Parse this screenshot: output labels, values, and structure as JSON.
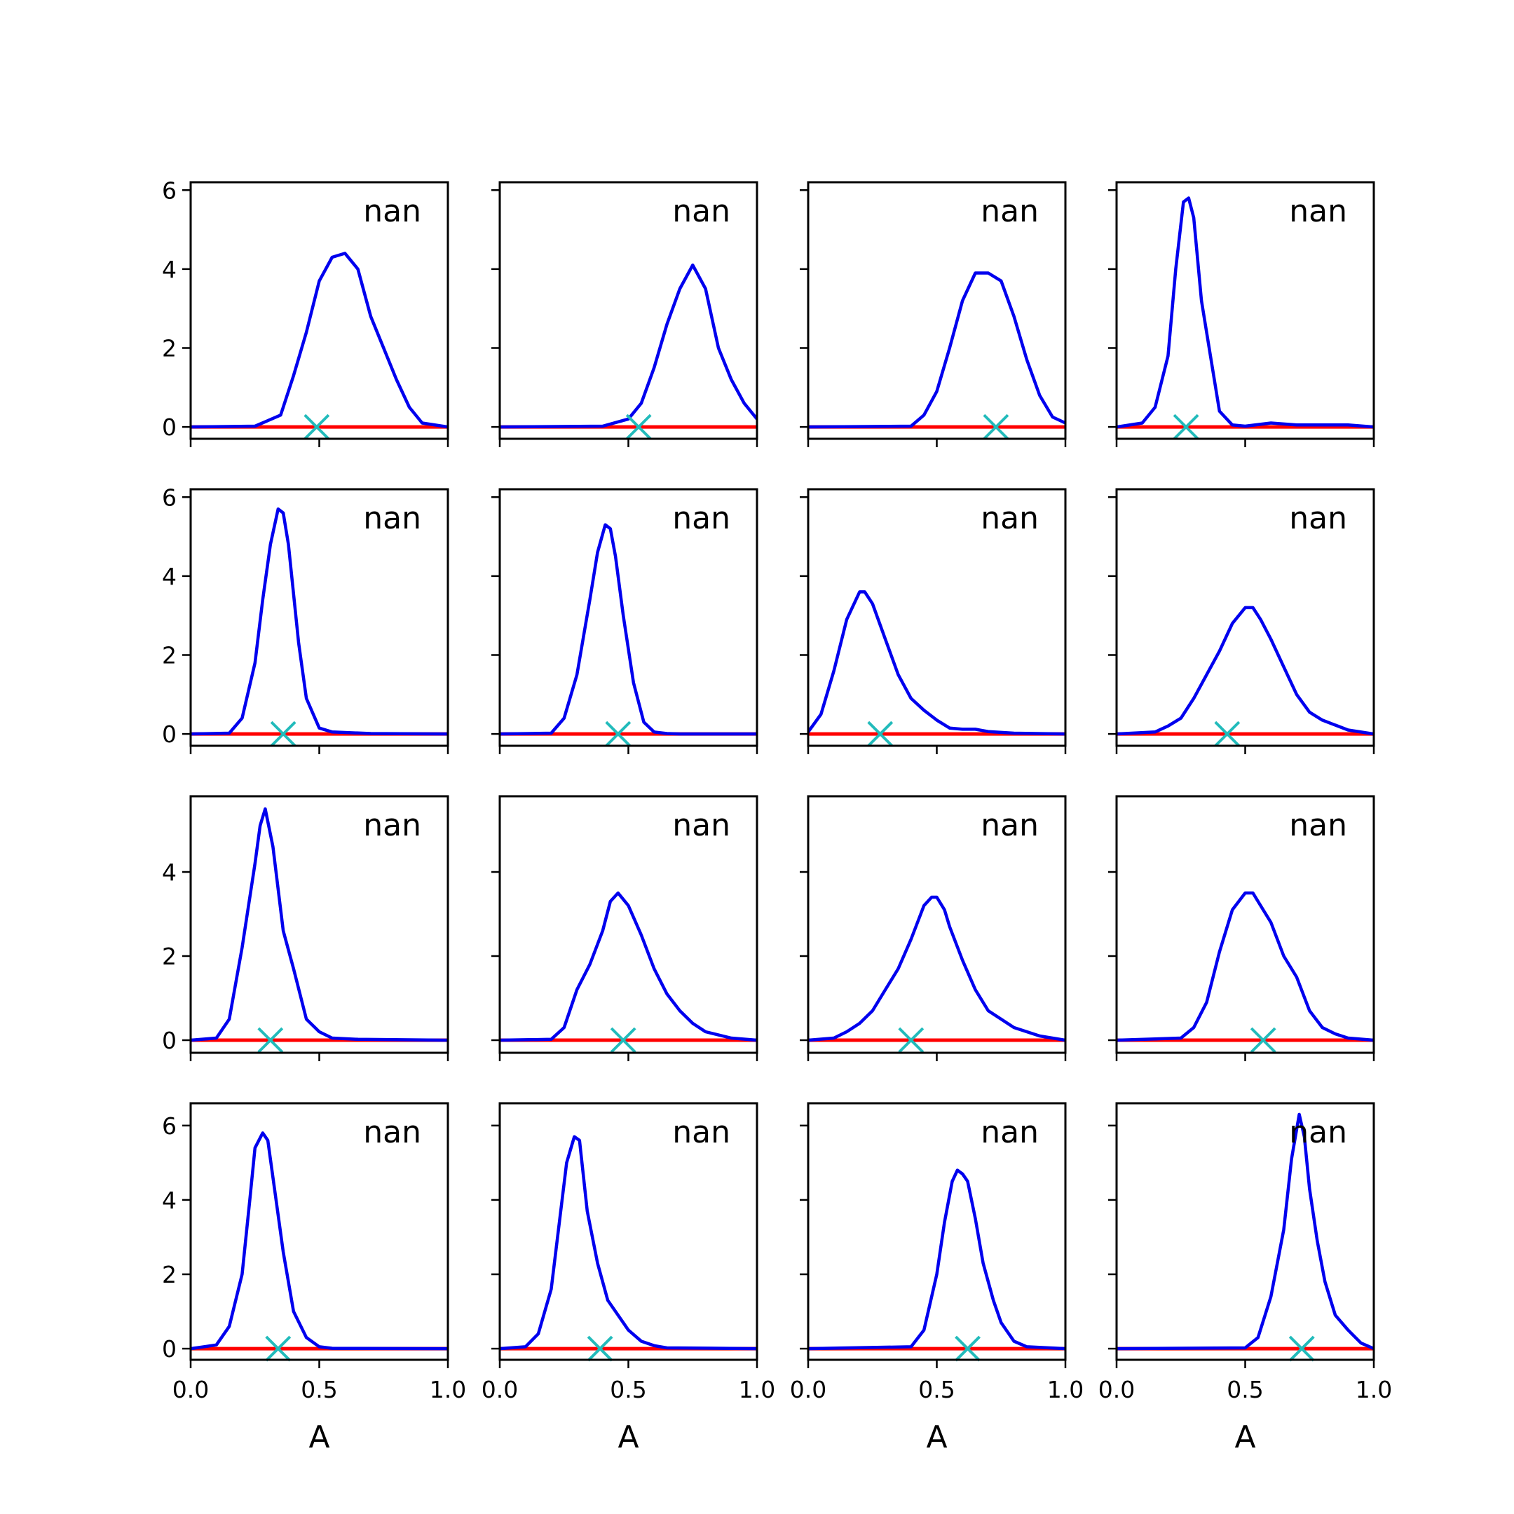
{
  "figure": {
    "xlabel": "A",
    "grid": false,
    "panel_label": "nan",
    "colors": {
      "posterior": "#0000ee",
      "reference_line": "#ff0000",
      "true_value_marker": "#22bbbb",
      "axes": "#000000"
    }
  },
  "chart_data": [
    {
      "type": "line",
      "xlim": [
        0,
        1
      ],
      "ylim": [
        -0.3,
        6.2
      ],
      "label": "nan",
      "marker_x": 0.49,
      "x": [
        0,
        0.25,
        0.35,
        0.4,
        0.45,
        0.5,
        0.55,
        0.6,
        0.65,
        0.7,
        0.75,
        0.8,
        0.85,
        0.9,
        1.0
      ],
      "y": [
        0,
        0.02,
        0.3,
        1.3,
        2.4,
        3.7,
        4.3,
        4.4,
        4.0,
        2.8,
        2.0,
        1.2,
        0.5,
        0.1,
        0
      ]
    },
    {
      "type": "line",
      "xlim": [
        0,
        1
      ],
      "ylim": [
        -0.3,
        6.2
      ],
      "label": "nan",
      "marker_x": 0.54,
      "x": [
        0,
        0.4,
        0.5,
        0.55,
        0.6,
        0.65,
        0.7,
        0.75,
        0.8,
        0.85,
        0.9,
        0.95,
        1.0
      ],
      "y": [
        0,
        0.02,
        0.2,
        0.6,
        1.5,
        2.6,
        3.5,
        4.1,
        3.5,
        2.0,
        1.2,
        0.6,
        0.2
      ]
    },
    {
      "type": "line",
      "xlim": [
        0,
        1
      ],
      "ylim": [
        -0.3,
        6.2
      ],
      "label": "nan",
      "marker_x": 0.73,
      "x": [
        0,
        0.4,
        0.45,
        0.5,
        0.55,
        0.6,
        0.65,
        0.7,
        0.75,
        0.8,
        0.85,
        0.9,
        0.95,
        1.0
      ],
      "y": [
        0,
        0.02,
        0.3,
        0.9,
        2.0,
        3.2,
        3.9,
        3.9,
        3.7,
        2.8,
        1.7,
        0.8,
        0.25,
        0.1
      ]
    },
    {
      "type": "line",
      "xlim": [
        0,
        1
      ],
      "ylim": [
        -0.3,
        6.2
      ],
      "label": "nan",
      "marker_x": 0.27,
      "x": [
        0,
        0.1,
        0.15,
        0.2,
        0.23,
        0.26,
        0.28,
        0.3,
        0.33,
        0.36,
        0.4,
        0.45,
        0.5,
        0.6,
        0.7,
        0.8,
        0.9,
        1.0
      ],
      "y": [
        0,
        0.1,
        0.5,
        1.8,
        4.0,
        5.7,
        5.8,
        5.3,
        3.2,
        2.0,
        0.4,
        0.05,
        0.02,
        0.1,
        0.05,
        0.05,
        0.05,
        0
      ]
    },
    {
      "type": "line",
      "xlim": [
        0,
        1
      ],
      "ylim": [
        -0.3,
        6.2
      ],
      "label": "nan",
      "marker_x": 0.36,
      "x": [
        0,
        0.15,
        0.2,
        0.25,
        0.28,
        0.31,
        0.34,
        0.36,
        0.38,
        0.42,
        0.45,
        0.5,
        0.55,
        0.7,
        1.0
      ],
      "y": [
        0,
        0.02,
        0.4,
        1.8,
        3.4,
        4.8,
        5.7,
        5.6,
        4.8,
        2.3,
        0.9,
        0.15,
        0.05,
        0.01,
        0
      ]
    },
    {
      "type": "line",
      "xlim": [
        0,
        1
      ],
      "ylim": [
        -0.3,
        6.2
      ],
      "label": "nan",
      "marker_x": 0.46,
      "x": [
        0,
        0.2,
        0.25,
        0.3,
        0.35,
        0.38,
        0.41,
        0.43,
        0.45,
        0.48,
        0.52,
        0.56,
        0.6,
        0.65,
        0.7,
        1.0
      ],
      "y": [
        0,
        0.02,
        0.4,
        1.5,
        3.4,
        4.6,
        5.3,
        5.2,
        4.5,
        3.0,
        1.3,
        0.3,
        0.05,
        0.01,
        0,
        0
      ]
    },
    {
      "type": "line",
      "xlim": [
        0,
        1
      ],
      "ylim": [
        -0.3,
        6.2
      ],
      "label": "nan",
      "marker_x": 0.28,
      "x": [
        0,
        0.05,
        0.1,
        0.15,
        0.2,
        0.22,
        0.25,
        0.3,
        0.35,
        0.4,
        0.45,
        0.5,
        0.55,
        0.6,
        0.65,
        0.7,
        0.8,
        1.0
      ],
      "y": [
        0.05,
        0.5,
        1.6,
        2.9,
        3.6,
        3.6,
        3.3,
        2.4,
        1.5,
        0.9,
        0.6,
        0.35,
        0.15,
        0.12,
        0.12,
        0.06,
        0.02,
        0
      ]
    },
    {
      "type": "line",
      "xlim": [
        0,
        1
      ],
      "ylim": [
        -0.3,
        6.2
      ],
      "label": "nan",
      "marker_x": 0.43,
      "x": [
        0,
        0.15,
        0.2,
        0.25,
        0.3,
        0.35,
        0.4,
        0.45,
        0.5,
        0.53,
        0.56,
        0.6,
        0.65,
        0.7,
        0.75,
        0.8,
        0.9,
        1.0
      ],
      "y": [
        0,
        0.05,
        0.2,
        0.4,
        0.9,
        1.5,
        2.1,
        2.8,
        3.2,
        3.2,
        2.9,
        2.4,
        1.7,
        1.0,
        0.55,
        0.35,
        0.1,
        0
      ]
    },
    {
      "type": "line",
      "xlim": [
        0,
        1
      ],
      "ylim": [
        -0.3,
        5.8
      ],
      "label": "nan",
      "marker_x": 0.31,
      "x": [
        0,
        0.1,
        0.15,
        0.2,
        0.25,
        0.27,
        0.29,
        0.32,
        0.36,
        0.4,
        0.45,
        0.5,
        0.55,
        0.65,
        1.0
      ],
      "y": [
        0,
        0.05,
        0.5,
        2.2,
        4.2,
        5.1,
        5.5,
        4.6,
        2.6,
        1.7,
        0.5,
        0.2,
        0.05,
        0.02,
        0
      ]
    },
    {
      "type": "line",
      "xlim": [
        0,
        1
      ],
      "ylim": [
        -0.3,
        5.8
      ],
      "label": "nan",
      "marker_x": 0.48,
      "x": [
        0,
        0.2,
        0.25,
        0.3,
        0.35,
        0.4,
        0.43,
        0.46,
        0.5,
        0.55,
        0.6,
        0.65,
        0.7,
        0.75,
        0.8,
        0.9,
        1.0
      ],
      "y": [
        0,
        0.02,
        0.3,
        1.2,
        1.8,
        2.6,
        3.3,
        3.5,
        3.2,
        2.5,
        1.7,
        1.1,
        0.7,
        0.4,
        0.2,
        0.05,
        0
      ]
    },
    {
      "type": "line",
      "xlim": [
        0,
        1
      ],
      "ylim": [
        -0.3,
        5.8
      ],
      "label": "nan",
      "marker_x": 0.4,
      "x": [
        0,
        0.1,
        0.15,
        0.2,
        0.25,
        0.3,
        0.35,
        0.4,
        0.45,
        0.48,
        0.5,
        0.53,
        0.55,
        0.6,
        0.65,
        0.7,
        0.75,
        0.8,
        0.85,
        0.9,
        1.0
      ],
      "y": [
        0,
        0.05,
        0.2,
        0.4,
        0.7,
        1.2,
        1.7,
        2.4,
        3.2,
        3.4,
        3.4,
        3.1,
        2.7,
        1.9,
        1.2,
        0.7,
        0.5,
        0.3,
        0.2,
        0.1,
        0
      ]
    },
    {
      "type": "line",
      "xlim": [
        0,
        1
      ],
      "ylim": [
        -0.3,
        5.8
      ],
      "label": "nan",
      "marker_x": 0.57,
      "x": [
        0,
        0.25,
        0.3,
        0.35,
        0.4,
        0.45,
        0.5,
        0.53,
        0.55,
        0.6,
        0.65,
        0.7,
        0.75,
        0.8,
        0.85,
        0.9,
        1.0
      ],
      "y": [
        0,
        0.05,
        0.3,
        0.9,
        2.1,
        3.1,
        3.5,
        3.5,
        3.3,
        2.8,
        2.0,
        1.5,
        0.7,
        0.3,
        0.15,
        0.05,
        0
      ]
    },
    {
      "type": "line",
      "xlim": [
        0,
        1
      ],
      "ylim": [
        -0.3,
        6.6
      ],
      "label": "nan",
      "marker_x": 0.34,
      "x": [
        0,
        0.1,
        0.15,
        0.2,
        0.23,
        0.25,
        0.28,
        0.3,
        0.33,
        0.36,
        0.4,
        0.45,
        0.5,
        0.55,
        1.0
      ],
      "y": [
        0,
        0.1,
        0.6,
        2.0,
        4.0,
        5.4,
        5.8,
        5.6,
        4.1,
        2.6,
        1.0,
        0.3,
        0.05,
        0.01,
        0
      ]
    },
    {
      "type": "line",
      "xlim": [
        0,
        1
      ],
      "ylim": [
        -0.3,
        6.6
      ],
      "label": "nan",
      "marker_x": 0.39,
      "x": [
        0,
        0.1,
        0.15,
        0.2,
        0.23,
        0.26,
        0.29,
        0.31,
        0.34,
        0.38,
        0.42,
        0.45,
        0.5,
        0.55,
        0.6,
        0.65,
        1.0
      ],
      "y": [
        0,
        0.05,
        0.4,
        1.6,
        3.3,
        5.0,
        5.7,
        5.6,
        3.7,
        2.3,
        1.3,
        1.0,
        0.5,
        0.2,
        0.08,
        0.02,
        0
      ]
    },
    {
      "type": "line",
      "xlim": [
        0,
        1
      ],
      "ylim": [
        -0.3,
        6.6
      ],
      "label": "nan",
      "marker_x": 0.62,
      "x": [
        0,
        0.4,
        0.45,
        0.5,
        0.53,
        0.56,
        0.58,
        0.6,
        0.62,
        0.65,
        0.68,
        0.72,
        0.75,
        0.8,
        0.85,
        1.0
      ],
      "y": [
        0,
        0.05,
        0.5,
        2.0,
        3.4,
        4.5,
        4.8,
        4.7,
        4.5,
        3.5,
        2.3,
        1.3,
        0.7,
        0.2,
        0.05,
        0
      ]
    },
    {
      "type": "line",
      "xlim": [
        0,
        1
      ],
      "ylim": [
        -0.3,
        6.6
      ],
      "label": "nan",
      "marker_x": 0.72,
      "x": [
        0,
        0.5,
        0.55,
        0.6,
        0.65,
        0.68,
        0.71,
        0.73,
        0.75,
        0.78,
        0.81,
        0.85,
        0.9,
        0.95,
        1.0
      ],
      "y": [
        0,
        0.02,
        0.3,
        1.4,
        3.2,
        5.1,
        6.3,
        5.7,
        4.3,
        2.9,
        1.8,
        0.9,
        0.5,
        0.15,
        0
      ]
    }
  ]
}
